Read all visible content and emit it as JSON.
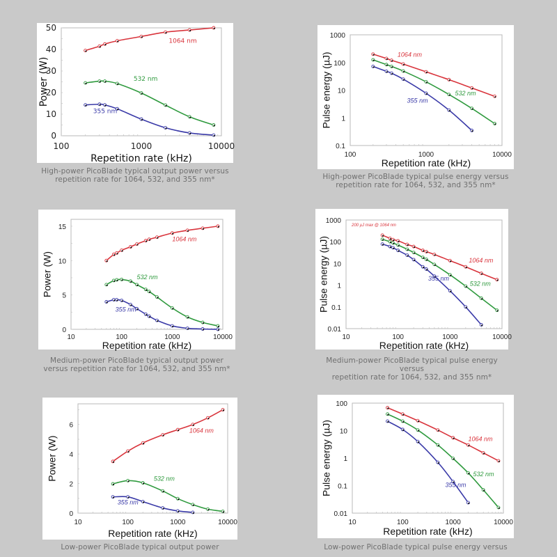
{
  "page": {
    "background": "#c9c9c9"
  },
  "colors": {
    "1064": "#d9343c",
    "532": "#2f9a3e",
    "355": "#3a3aa8",
    "axis": "#333333",
    "frame": "#9a9a9a"
  },
  "captions": [
    "High-power PicoBlade typical output power versus repetition rate for 1064, 532, and 355 nm*",
    "High-power PicoBlade typical pulse energy versus repetition rate for 1064, 532, and 355 nm*",
    "Medium-power PicoBlade typical output power versus repetition rate for 1064, 532, and 355 nm*",
    "Medium-power PicoBlade typical pulse energy versus repetition rate for 1064, 532, and 355 nm*",
    "Low-power PicoBlade typical output power",
    "Low-power PicoBlade typical pulse energy versus"
  ],
  "caption_lines": [
    [
      "High-power PicoBlade typical output power versus",
      "repetition rate for 1064, 532, and 355 nm*"
    ],
    [
      "High-power PicoBlade typical pulse energy versus",
      "repetition rate for 1064, 532, and 355 nm*"
    ],
    [
      "Medium-power PicoBlade typical output power",
      "versus repetition rate for 1064, 532, and 355 nm*"
    ],
    [
      "Medium-power PicoBlade typical pulse energy versus",
      "repetition rate for 1064, 532, and 355 nm*"
    ],
    [
      "Low-power PicoBlade typical output power"
    ],
    [
      "Low-power PicoBlade typical pulse energy versus"
    ]
  ],
  "chart_data": [
    {
      "type": "line",
      "title": "High-power PicoBlade typical output power",
      "xlabel": "Repetition rate (kHz)",
      "ylabel": "Power (W)",
      "xscale": "log",
      "xlim": [
        100,
        10000
      ],
      "xticks": [
        100,
        1000,
        10000
      ],
      "yscale": "linear",
      "ylim": [
        0,
        50
      ],
      "yticks": [
        0,
        10,
        20,
        30,
        40,
        50
      ],
      "grid": false,
      "series": [
        {
          "name": "1064 nm",
          "x": [
            200,
            300,
            350,
            500,
            1000,
            2000,
            4000,
            8000
          ],
          "y": [
            39.5,
            41.5,
            42.5,
            44,
            46,
            48,
            49,
            50
          ]
        },
        {
          "name": "532 nm",
          "x": [
            200,
            300,
            350,
            500,
            1000,
            2000,
            4000,
            8000
          ],
          "y": [
            24.5,
            25.3,
            25.3,
            24.2,
            19.8,
            14.2,
            8.8,
            5
          ]
        },
        {
          "name": "355 nm",
          "x": [
            200,
            300,
            350,
            500,
            1000,
            2000,
            4000,
            8000
          ],
          "y": [
            14.3,
            14.6,
            14.3,
            12.5,
            7.7,
            3.7,
            1.3,
            0.3
          ]
        }
      ],
      "labels": [
        {
          "text": "1064 nm",
          "x": 2200,
          "y": 43,
          "series": "1064 nm"
        },
        {
          "text": "532 nm",
          "x": 800,
          "y": 25.5,
          "series": "532 nm"
        },
        {
          "text": "355 nm",
          "x": 250,
          "y": 10.5,
          "series": "355 nm"
        }
      ]
    },
    {
      "type": "line",
      "title": "High-power PicoBlade typical pulse energy",
      "xlabel": "Repetition rate (kHz)",
      "ylabel": "Pulse energy (µJ)",
      "xscale": "log",
      "xlim": [
        100,
        10000
      ],
      "xticks": [
        100,
        1000,
        10000
      ],
      "yscale": "log",
      "ylim": [
        0.1,
        1000
      ],
      "yticks": [
        0.1,
        1,
        10,
        100,
        1000
      ],
      "grid": false,
      "series": [
        {
          "name": "1064 nm",
          "x": [
            200,
            300,
            350,
            500,
            1000,
            2000,
            4000,
            8000
          ],
          "y": [
            200,
            140,
            120,
            88,
            46,
            24,
            12,
            6
          ]
        },
        {
          "name": "532 nm",
          "x": [
            200,
            300,
            350,
            500,
            1000,
            2000,
            4000,
            8000
          ],
          "y": [
            125,
            84,
            72,
            49,
            20,
            7,
            2.2,
            0.62
          ]
        },
        {
          "name": "355 nm",
          "x": [
            200,
            300,
            350,
            500,
            1000,
            2000,
            4000
          ],
          "y": [
            72,
            48,
            41,
            25,
            7.7,
            1.9,
            0.35
          ]
        }
      ],
      "labels": [
        {
          "text": "1064 nm",
          "x": 420,
          "y": 160,
          "series": "1064 nm"
        },
        {
          "text": "532 nm",
          "x": 2400,
          "y": 6.5,
          "series": "532 nm"
        },
        {
          "text": "355 nm",
          "x": 560,
          "y": 3.5,
          "series": "355 nm"
        }
      ]
    },
    {
      "type": "line",
      "title": "Medium-power PicoBlade typical output power",
      "xlabel": "Repetition rate (kHz)",
      "ylabel": "Power (W)",
      "xscale": "log",
      "xlim": [
        10,
        10000
      ],
      "xticks": [
        10,
        100,
        1000,
        10000
      ],
      "yscale": "linear",
      "ylim": [
        0,
        16
      ],
      "yticks": [
        0,
        5,
        10,
        15
      ],
      "grid": false,
      "series": [
        {
          "name": "1064 nm",
          "x": [
            50,
            70,
            80,
            100,
            150,
            200,
            300,
            350,
            500,
            1000,
            2000,
            4000,
            8000
          ],
          "y": [
            10,
            10.9,
            11.1,
            11.5,
            12,
            12.4,
            12.9,
            13.1,
            13.4,
            14,
            14.4,
            14.7,
            15
          ]
        },
        {
          "name": "532 nm",
          "x": [
            50,
            70,
            80,
            100,
            150,
            200,
            300,
            350,
            500,
            1000,
            2000,
            4000,
            8000
          ],
          "y": [
            6.5,
            7.1,
            7.2,
            7.25,
            7,
            6.5,
            5.8,
            5.5,
            4.7,
            3.1,
            1.8,
            1,
            0.5
          ]
        },
        {
          "name": "355 nm",
          "x": [
            50,
            70,
            80,
            100,
            150,
            200,
            300,
            350,
            500,
            1000,
            2000,
            4000,
            8000
          ],
          "y": [
            4,
            4.3,
            4.3,
            4.2,
            3.6,
            3,
            2.2,
            1.9,
            1.3,
            0.5,
            0.15,
            0.05,
            0
          ]
        }
      ],
      "labels": [
        {
          "text": "1064 nm",
          "x": 1000,
          "y": 12.8,
          "series": "1064 nm"
        },
        {
          "text": "532 nm",
          "x": 200,
          "y": 7.3,
          "series": "532 nm"
        },
        {
          "text": "355 nm",
          "x": 75,
          "y": 2.6,
          "series": "355 nm"
        }
      ]
    },
    {
      "type": "line",
      "title": "Medium-power PicoBlade typical pulse energy",
      "xlabel": "Repetition rate (kHz)",
      "ylabel": "Pulse energy (µJ)",
      "xscale": "log",
      "xlim": [
        10,
        10000
      ],
      "xticks": [
        10,
        100,
        1000,
        10000
      ],
      "yscale": "log",
      "ylim": [
        0.01,
        1000
      ],
      "yticks": [
        0.01,
        0.1,
        1,
        10,
        100,
        1000
      ],
      "grid": false,
      "annotation": "200 µJ max @ 1064 nm",
      "series": [
        {
          "name": "1064 nm",
          "x": [
            50,
            70,
            80,
            100,
            150,
            200,
            300,
            350,
            500,
            1000,
            2000,
            4000,
            8000
          ],
          "y": [
            200,
            143,
            125,
            110,
            75,
            60,
            40,
            35,
            26,
            13.5,
            7,
            3.5,
            1.8
          ]
        },
        {
          "name": "532 nm",
          "x": [
            50,
            70,
            80,
            100,
            150,
            200,
            300,
            350,
            500,
            1000,
            2000,
            4000,
            8000
          ],
          "y": [
            130,
            100,
            88,
            70,
            45,
            32,
            19,
            15.5,
            9,
            3,
            0.9,
            0.25,
            0.07
          ]
        },
        {
          "name": "355 nm",
          "x": [
            50,
            70,
            80,
            100,
            150,
            200,
            300,
            350,
            500,
            1000,
            2000,
            4000
          ],
          "y": [
            78,
            60,
            53,
            40,
            24,
            15,
            7,
            5.5,
            2.6,
            0.55,
            0.1,
            0.015
          ]
        }
      ],
      "labels": [
        {
          "text": "1064 nm",
          "x": 2300,
          "y": 11,
          "series": "1064 nm"
        },
        {
          "text": "532 nm",
          "x": 2400,
          "y": 0.95,
          "series": "532 nm"
        },
        {
          "text": "355 nm",
          "x": 380,
          "y": 1.6,
          "series": "355 nm"
        }
      ]
    },
    {
      "type": "line",
      "title": "Low-power PicoBlade typical output power",
      "xlabel": "Repetition rate (kHz)",
      "ylabel": "Power (W)",
      "xscale": "log",
      "xlim": [
        10,
        10000
      ],
      "xticks": [
        10,
        100,
        1000,
        10000
      ],
      "yscale": "linear",
      "ylim": [
        0,
        7.4
      ],
      "yticks": [
        0,
        2,
        4,
        6
      ],
      "grid": false,
      "series": [
        {
          "name": "1064 nm",
          "x": [
            50,
            100,
            200,
            500,
            1000,
            2000,
            4000,
            8000
          ],
          "y": [
            3.5,
            4.2,
            4.75,
            5.3,
            5.65,
            6,
            6.45,
            7
          ]
        },
        {
          "name": "532 nm",
          "x": [
            50,
            100,
            200,
            500,
            1000,
            2000,
            4000,
            8000
          ],
          "y": [
            1.98,
            2.2,
            2.05,
            1.5,
            0.98,
            0.58,
            0.27,
            0.12
          ]
        },
        {
          "name": "355 nm",
          "x": [
            50,
            100,
            200,
            500,
            1000,
            2000
          ],
          "y": [
            1.1,
            1.1,
            0.78,
            0.35,
            0.15,
            0.05
          ]
        }
      ],
      "labels": [
        {
          "text": "1064 nm",
          "x": 1700,
          "y": 5.45,
          "series": "1064 nm"
        },
        {
          "text": "532 nm",
          "x": 330,
          "y": 2.2,
          "series": "532 nm"
        },
        {
          "text": "355 nm",
          "x": 62,
          "y": 0.6,
          "series": "355 nm"
        }
      ]
    },
    {
      "type": "line",
      "title": "Low-power PicoBlade typical pulse energy",
      "xlabel": "Repetition rate (kHz)",
      "ylabel": "Pulse energy (µJ)",
      "xscale": "log",
      "xlim": [
        10,
        10000
      ],
      "xticks": [
        10,
        100,
        1000,
        10000
      ],
      "yscale": "log",
      "ylim": [
        0.01,
        100
      ],
      "yticks": [
        0.01,
        0.1,
        1,
        10,
        100
      ],
      "grid": false,
      "series": [
        {
          "name": "1064 nm",
          "x": [
            50,
            100,
            200,
            500,
            1000,
            2000,
            4000,
            8000
          ],
          "y": [
            68,
            40,
            23,
            10.5,
            5.5,
            3,
            1.55,
            0.8
          ]
        },
        {
          "name": "532 nm",
          "x": [
            50,
            100,
            200,
            500,
            1000,
            2000,
            4000,
            8000
          ],
          "y": [
            40,
            22,
            10.5,
            3,
            0.98,
            0.29,
            0.07,
            0.016
          ]
        },
        {
          "name": "355 nm",
          "x": [
            50,
            100,
            200,
            500,
            1000,
            2000
          ],
          "y": [
            22,
            11,
            4,
            0.7,
            0.14,
            0.024
          ]
        }
      ],
      "labels": [
        {
          "text": "1064 nm",
          "x": 2000,
          "y": 4.2,
          "series": "1064 nm"
        },
        {
          "text": "532 nm",
          "x": 2500,
          "y": 0.22,
          "series": "532 nm"
        },
        {
          "text": "355 nm",
          "x": 700,
          "y": 0.09,
          "series": "355 nm"
        }
      ]
    }
  ]
}
